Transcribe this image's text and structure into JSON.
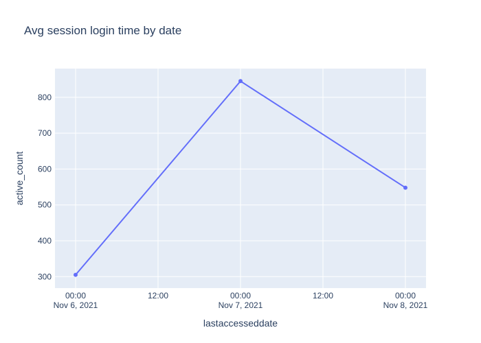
{
  "chart_data": {
    "type": "line",
    "title": "Avg session login time by date",
    "xlabel": "lastaccesseddate",
    "ylabel": "active_count",
    "x": [
      "2021-11-06 00:00",
      "2021-11-07 00:00",
      "2021-11-08 00:00"
    ],
    "series": [
      {
        "values": [
          305,
          845,
          548
        ]
      }
    ],
    "xlim": [
      "2021-11-05 21:00",
      "2021-11-08 03:00"
    ],
    "ylim": [
      268,
      880
    ],
    "x_ticks": [
      {
        "at": "2021-11-06 00:00",
        "line1": "00:00",
        "line2": "Nov 6, 2021"
      },
      {
        "at": "2021-11-06 12:00",
        "line1": "12:00",
        "line2": ""
      },
      {
        "at": "2021-11-07 00:00",
        "line1": "00:00",
        "line2": "Nov 7, 2021"
      },
      {
        "at": "2021-11-07 12:00",
        "line1": "12:00",
        "line2": ""
      },
      {
        "at": "2021-11-08 00:00",
        "line1": "00:00",
        "line2": "Nov 8, 2021"
      }
    ],
    "y_ticks": [
      300,
      400,
      500,
      600,
      700,
      800
    ],
    "grid": true,
    "colors": {
      "line": "#636efa",
      "plot_bg": "#e5ecf6",
      "grid": "#ffffff",
      "text": "#2a3f5f"
    }
  }
}
